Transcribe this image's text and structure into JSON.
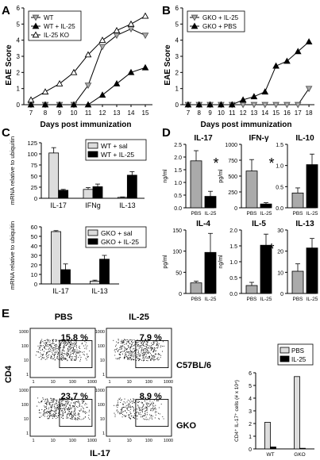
{
  "panels": {
    "A": {
      "letter": "A",
      "ylabel": "EAE Score",
      "xlabel": "Days post immunization"
    },
    "B": {
      "letter": "B",
      "ylabel": "EAE Score",
      "xlabel": "Days post immunization"
    },
    "C": {
      "letter": "C"
    },
    "D": {
      "letter": "D"
    },
    "E": {
      "letter": "E",
      "x_axis_title": "IL-17",
      "y_axis_title": "CD4",
      "col_pbs": "PBS",
      "col_il25": "IL-25",
      "row1": "C57BL/6",
      "row2": "GKO"
    }
  },
  "chart_data": [
    {
      "id": "A",
      "type": "line",
      "x": [
        7,
        8,
        9,
        10,
        11,
        12,
        13,
        14,
        15
      ],
      "ylim": [
        0,
        6
      ],
      "yticks": [
        0,
        1,
        2,
        3,
        4,
        5,
        6
      ],
      "series": [
        {
          "name": "WT",
          "marker": "tri-down-open",
          "values": [
            0,
            0,
            0,
            0,
            1.2,
            3.6,
            4.3,
            4.7,
            4.3
          ]
        },
        {
          "name": "WT + IL-25",
          "marker": "tri-up-filled",
          "values": [
            0,
            0,
            0,
            0,
            0,
            0.6,
            1.3,
            2.0,
            2.3
          ]
        },
        {
          "name": "IL-25 KO",
          "marker": "tri-up-open",
          "values": [
            0.3,
            0.8,
            1.3,
            2.0,
            3.1,
            4.0,
            4.6,
            5.0,
            5.5
          ]
        }
      ]
    },
    {
      "id": "B",
      "type": "line",
      "x": [
        7,
        8,
        9,
        10,
        11,
        12,
        13,
        14,
        15,
        16,
        17,
        18
      ],
      "ylim": [
        0,
        6
      ],
      "yticks": [
        0,
        1,
        2,
        3,
        4,
        5,
        6
      ],
      "series": [
        {
          "name": "GKO + IL-25",
          "marker": "tri-down-open",
          "values": [
            0,
            0,
            0,
            0,
            0,
            0,
            0,
            0,
            0,
            0,
            0,
            1.0
          ]
        },
        {
          "name": "GKO + PBS",
          "marker": "tri-up-filled",
          "values": [
            0,
            0,
            0,
            0,
            0,
            0.3,
            0.5,
            0.8,
            2.4,
            2.7,
            3.3,
            3.9
          ]
        }
      ]
    },
    {
      "id": "C1",
      "type": "bar",
      "ylabel": "mRNA relative to ubiquitin",
      "ylim": [
        0,
        125
      ],
      "yticks": [
        0,
        25,
        50,
        75,
        100,
        125
      ],
      "categories": [
        "IL-17",
        "IFNg",
        "IL-13"
      ],
      "series": [
        {
          "name": "WT + sal",
          "values": [
            102,
            20,
            2
          ],
          "errors": [
            12,
            4,
            1
          ]
        },
        {
          "name": "WT + IL-25",
          "values": [
            18,
            26,
            52
          ],
          "errors": [
            2,
            6,
            8
          ]
        }
      ]
    },
    {
      "id": "C2",
      "type": "bar",
      "ylabel": "mRNA relative to ubiquitin",
      "ylim": [
        0,
        60
      ],
      "yticks": [
        0,
        10,
        20,
        30,
        40,
        50,
        60
      ],
      "categories": [
        "IL-17",
        "IL-13"
      ],
      "series": [
        {
          "name": "GKO + sal",
          "values": [
            55,
            3
          ],
          "errors": [
            1,
            1
          ]
        },
        {
          "name": "GKO + IL-25",
          "values": [
            15,
            26
          ],
          "errors": [
            6,
            4
          ]
        }
      ]
    },
    {
      "id": "D-IL-17",
      "type": "bar",
      "title": "IL-17",
      "ylabel": "ng/ml",
      "star": true,
      "ylim": [
        0,
        2.5
      ],
      "yticks": [
        "0.0",
        "0.5",
        "1.0",
        "1.5",
        "2.0",
        "2.5"
      ],
      "categories": [
        "PBS",
        "IL-25"
      ],
      "values": [
        1.85,
        0.45
      ],
      "errors": [
        0.4,
        0.2
      ]
    },
    {
      "id": "D-IFN",
      "type": "bar",
      "title": "IFN-γ",
      "ylabel": "pg/ml",
      "star": true,
      "ylim": [
        0,
        1000
      ],
      "yticks": [
        "0",
        "250",
        "500",
        "750",
        "1000"
      ],
      "categories": [
        "PBS",
        "IL-25"
      ],
      "values": [
        580,
        60
      ],
      "errors": [
        180,
        20
      ]
    },
    {
      "id": "D-IL-10",
      "type": "bar",
      "title": "IL-10",
      "ylabel": "",
      "star": false,
      "ylim": [
        0,
        1.5
      ],
      "yticks": [
        "0.0",
        "0.5",
        "1.0",
        "1.5"
      ],
      "categories": [
        "PBS",
        "IL-25"
      ],
      "values": [
        0.35,
        1.02
      ],
      "errors": [
        0.12,
        0.25
      ]
    },
    {
      "id": "D-IL-4",
      "type": "bar",
      "title": "IL-4",
      "ylabel": "pg/ml",
      "star": false,
      "ylim": [
        0,
        150
      ],
      "yticks": [
        "0",
        "50",
        "100",
        "150"
      ],
      "categories": [
        "PBS",
        "IL-25"
      ],
      "values": [
        25,
        97
      ],
      "errors": [
        4,
        45
      ]
    },
    {
      "id": "D-IL-5",
      "type": "bar",
      "title": "IL-5",
      "ylabel": "ng/ml",
      "star": true,
      "ylim": [
        0,
        2.0
      ],
      "yticks": [
        "0.0",
        "0.5",
        "1.0",
        "1.5",
        "2.0"
      ],
      "categories": [
        "PBS",
        "IL-25"
      ],
      "values": [
        0.25,
        1.52
      ],
      "errors": [
        0.1,
        0.35
      ]
    },
    {
      "id": "D-IL-13",
      "type": "bar",
      "title": "IL-13",
      "ylabel": "",
      "star": false,
      "ylim": [
        0,
        30
      ],
      "yticks": [
        "0",
        "10",
        "20",
        "30"
      ],
      "categories": [
        "PBS",
        "IL-25"
      ],
      "values": [
        10.5,
        21.5
      ],
      "errors": [
        3.5,
        4.5
      ]
    },
    {
      "id": "E-flow",
      "type": "scatter",
      "cells": [
        {
          "row": "C57BL/6",
          "col": "PBS",
          "percent": "15.8 %"
        },
        {
          "row": "C57BL/6",
          "col": "IL-25",
          "percent": "7.9 %"
        },
        {
          "row": "GKO",
          "col": "PBS",
          "percent": "23.7 %"
        },
        {
          "row": "GKO",
          "col": "IL-25",
          "percent": "8.9 %"
        }
      ],
      "ticks": [
        "1",
        "10",
        "100",
        "1000"
      ]
    },
    {
      "id": "E-bar",
      "type": "bar",
      "ylabel": "CD4⁺ IL-17⁺ cells (# x 10⁴)",
      "ylim": [
        0,
        6
      ],
      "yticks": [
        0,
        1,
        2,
        3,
        4,
        5,
        6
      ],
      "categories": [
        "WT",
        "GKO"
      ],
      "series": [
        {
          "name": "PBS",
          "values": [
            2.1,
            5.7
          ]
        },
        {
          "name": "IL-25",
          "values": [
            0.15,
            0.05
          ]
        }
      ]
    }
  ]
}
